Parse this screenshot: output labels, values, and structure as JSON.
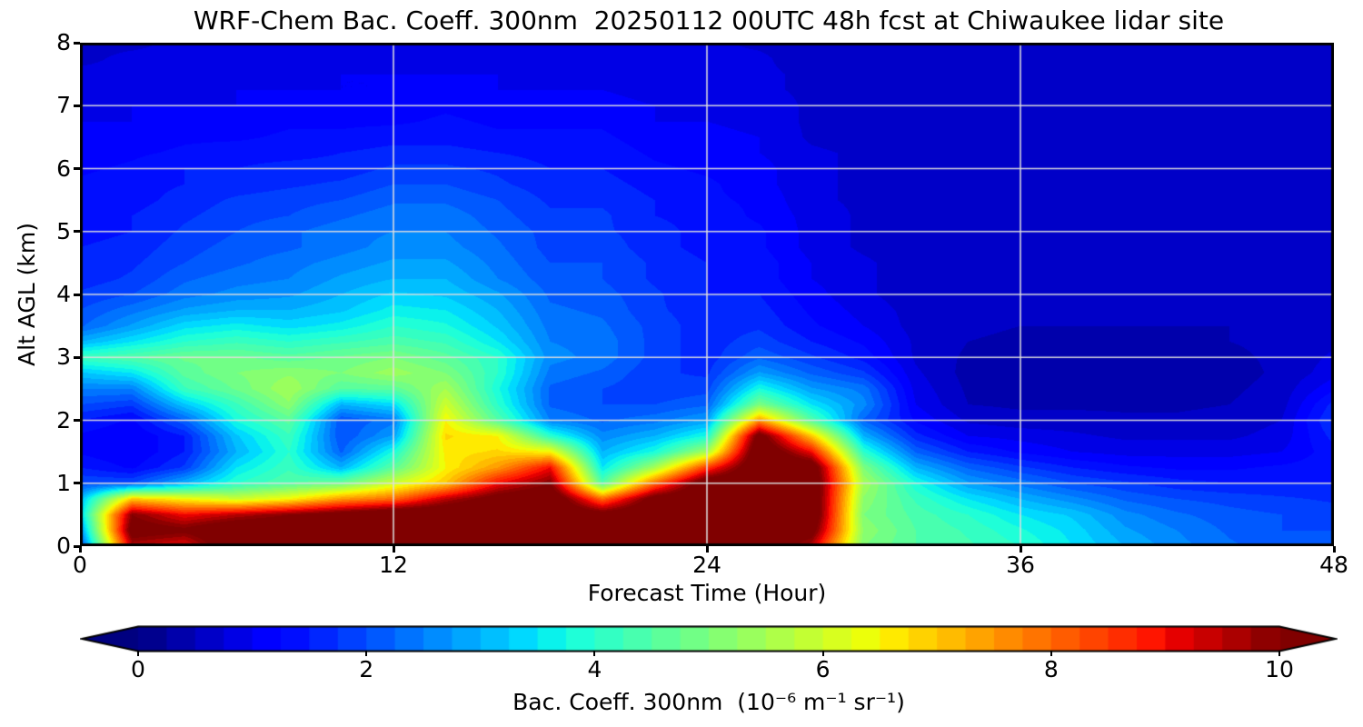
{
  "figure": {
    "background": "#ffffff"
  },
  "chart_data": {
    "type": "heatmap",
    "title": "WRF-Chem Bac. Coeff. 300nm  20250112 00UTC 48h fcst at Chiwaukee lidar site",
    "xlabel": "Forecast Time (Hour)",
    "ylabel": "Alt AGL (km)",
    "xlim": [
      0,
      48
    ],
    "ylim": [
      0,
      8
    ],
    "x_ticks": [
      0,
      12,
      24,
      36,
      48
    ],
    "y_ticks": [
      0,
      1,
      2,
      3,
      4,
      5,
      6,
      7,
      8
    ],
    "grid": true,
    "grid_color": "#dedede",
    "colormap": "jet",
    "value_range": [
      0,
      10
    ],
    "level_step": 0.25,
    "colorbar": {
      "ticks": [
        0,
        2,
        4,
        6,
        8,
        10
      ],
      "label": "Bac. Coeff. 300nm  (10⁻⁶ m⁻¹ sr⁻¹)",
      "extend": "both",
      "min_color": "#000080",
      "max_color": "#800000"
    },
    "units": "10⁻⁶ m⁻¹ sr⁻¹",
    "x_hours": [
      0,
      2,
      4,
      6,
      8,
      10,
      12,
      14,
      16,
      18,
      20,
      22,
      24,
      26,
      28,
      30,
      32,
      34,
      36,
      38,
      40,
      42,
      44,
      46,
      48
    ],
    "alt_km": [
      0,
      0.25,
      0.5,
      0.75,
      1,
      1.25,
      1.5,
      1.75,
      2,
      2.25,
      2.5,
      2.75,
      3,
      3.25,
      3.5,
      3.75,
      4,
      4.25,
      4.5,
      4.75,
      5,
      5.25,
      5.5,
      5.75,
      6,
      6.25,
      6.5,
      6.75,
      7,
      7.25,
      7.5,
      7.75,
      8
    ],
    "values_dims": [
      "hour",
      "alt"
    ],
    "values": [
      [
        1.8,
        2.5,
        3.2,
        3.0,
        2.0,
        1.5,
        1.2,
        1.2,
        1.5,
        2.0,
        2.5,
        3.2,
        4.2,
        3.0,
        2.2,
        2.0,
        1.8,
        1.6,
        1.5,
        1.5,
        1.4,
        1.4,
        1.3,
        1.3,
        1.2,
        1.1,
        1.0,
        1.0,
        0.9,
        0.8,
        0.8,
        0.7,
        0.7
      ],
      [
        9.5,
        10.5,
        10.0,
        7.0,
        2.0,
        1.2,
        1.0,
        1.0,
        1.2,
        1.8,
        2.5,
        3.5,
        4.5,
        3.5,
        2.8,
        2.4,
        2.0,
        1.8,
        1.7,
        1.6,
        1.5,
        1.5,
        1.4,
        1.4,
        1.3,
        1.2,
        1.1,
        1.0,
        1.0,
        0.9,
        0.8,
        0.8,
        0.7
      ],
      [
        9.0,
        10.2,
        9.0,
        6.5,
        3.0,
        1.8,
        1.5,
        1.5,
        2.2,
        3.2,
        4.2,
        4.6,
        4.8,
        4.0,
        3.4,
        2.8,
        2.4,
        2.2,
        2.0,
        1.9,
        1.8,
        1.7,
        1.6,
        1.5,
        1.5,
        1.3,
        1.2,
        1.1,
        1.0,
        0.9,
        0.9,
        0.8,
        0.8
      ],
      [
        11,
        11,
        9.5,
        6.0,
        4.0,
        3.5,
        3.0,
        3.2,
        3.8,
        4.2,
        4.8,
        5.0,
        4.8,
        4.2,
        3.6,
        3.0,
        2.6,
        2.4,
        2.2,
        2.1,
        2.0,
        1.9,
        1.8,
        1.6,
        1.5,
        1.4,
        1.2,
        1.1,
        1.0,
        1.0,
        0.9,
        0.8,
        0.8
      ],
      [
        11,
        11,
        10.0,
        6.5,
        4.5,
        4.2,
        4.0,
        4.2,
        4.6,
        5.2,
        5.5,
        5.2,
        4.6,
        4.0,
        3.4,
        3.0,
        2.7,
        2.5,
        2.4,
        2.2,
        2.2,
        2.0,
        1.9,
        1.7,
        1.6,
        1.4,
        1.3,
        1.2,
        1.1,
        1.0,
        0.9,
        0.9,
        0.8
      ],
      [
        11,
        11,
        10.5,
        7.5,
        4.8,
        3.0,
        2.2,
        2.0,
        2.0,
        3.0,
        4.5,
        5.0,
        4.8,
        4.2,
        3.6,
        3.2,
        3.0,
        2.8,
        2.6,
        2.4,
        2.4,
        2.2,
        2.0,
        1.8,
        1.6,
        1.5,
        1.3,
        1.2,
        1.1,
        1.0,
        1.0,
        0.9,
        0.8
      ],
      [
        11,
        11,
        11,
        8.0,
        6.0,
        4.6,
        3.8,
        2.8,
        2.4,
        3.4,
        4.6,
        5.4,
        5.0,
        4.4,
        4.0,
        3.6,
        3.3,
        3.0,
        2.8,
        2.6,
        2.5,
        2.4,
        2.2,
        2.0,
        1.8,
        1.6,
        1.4,
        1.2,
        1.1,
        1.0,
        1.0,
        0.9,
        0.9
      ],
      [
        11,
        11,
        11,
        9.5,
        7.0,
        6.5,
        6.6,
        6.8,
        6.5,
        6.0,
        5.5,
        5.0,
        4.6,
        4.2,
        3.8,
        3.5,
        3.2,
        3.0,
        2.8,
        2.6,
        2.5,
        2.4,
        2.2,
        2.0,
        1.8,
        1.6,
        1.4,
        1.3,
        1.2,
        1.1,
        1.0,
        0.9,
        0.9
      ],
      [
        11,
        11,
        11,
        10.5,
        9.0,
        7.5,
        6.8,
        6.5,
        4.5,
        4.0,
        3.8,
        4.0,
        4.0,
        3.5,
        3.2,
        3.0,
        2.8,
        2.5,
        2.4,
        2.3,
        2.2,
        2.1,
        2.0,
        1.8,
        1.7,
        1.5,
        1.3,
        1.2,
        1.1,
        1.0,
        1.0,
        0.9,
        0.9
      ],
      [
        11,
        11,
        11,
        11,
        10.0,
        9.0,
        6.5,
        4.0,
        2.5,
        2.2,
        2.2,
        2.4,
        2.6,
        2.5,
        2.4,
        2.3,
        2.2,
        2.1,
        2.0,
        1.9,
        1.9,
        1.8,
        1.7,
        1.6,
        1.5,
        1.4,
        1.3,
        1.2,
        1.1,
        1.0,
        0.9,
        0.9,
        0.8
      ],
      [
        11,
        11,
        10.5,
        8.0,
        4.5,
        3.5,
        3.0,
        2.6,
        2.2,
        2.0,
        2.0,
        2.2,
        2.4,
        2.4,
        2.3,
        2.2,
        2.1,
        2.0,
        2.0,
        1.9,
        1.8,
        1.8,
        1.7,
        1.6,
        1.5,
        1.4,
        1.3,
        1.2,
        1.1,
        1.0,
        0.9,
        0.9,
        0.8
      ],
      [
        11,
        11,
        11,
        10.5,
        8.0,
        5.5,
        3.8,
        3.0,
        2.4,
        2.0,
        1.8,
        1.8,
        1.9,
        1.9,
        1.9,
        1.8,
        1.8,
        1.7,
        1.7,
        1.6,
        1.6,
        1.5,
        1.5,
        1.4,
        1.3,
        1.2,
        1.1,
        1.0,
        1.0,
        0.9,
        0.9,
        0.8,
        0.8
      ],
      [
        11,
        11,
        11,
        11,
        10.8,
        8.5,
        5.5,
        3.8,
        2.8,
        2.2,
        1.9,
        1.7,
        1.6,
        1.6,
        1.6,
        1.6,
        1.5,
        1.5,
        1.5,
        1.4,
        1.4,
        1.4,
        1.3,
        1.3,
        1.2,
        1.1,
        1.1,
        1.0,
        0.9,
        0.9,
        0.8,
        0.8,
        0.8
      ],
      [
        11,
        11,
        11,
        11,
        11,
        11,
        11,
        10.5,
        7.5,
        5.0,
        3.8,
        2.8,
        2.2,
        1.9,
        1.7,
        1.6,
        1.5,
        1.4,
        1.4,
        1.3,
        1.3,
        1.2,
        1.2,
        1.1,
        1.1,
        1.0,
        1.0,
        0.9,
        0.9,
        0.8,
        0.8,
        0.8,
        0.7
      ],
      [
        9.5,
        10.5,
        11,
        11,
        11,
        10.8,
        9.0,
        7.0,
        4.5,
        3.5,
        2.8,
        2.2,
        1.8,
        1.5,
        1.3,
        1.2,
        1.1,
        1.0,
        1.0,
        0.9,
        0.9,
        0.9,
        0.8,
        0.8,
        0.8,
        0.8,
        0.7,
        0.7,
        0.7,
        0.7,
        0.7,
        0.6,
        0.6
      ],
      [
        5.0,
        5.2,
        5.0,
        5.2,
        5.5,
        5.0,
        4.0,
        3.0,
        2.2,
        2.6,
        2.4,
        1.8,
        1.4,
        1.2,
        1.0,
        0.9,
        0.8,
        0.8,
        0.8,
        0.7,
        0.7,
        0.7,
        0.7,
        0.7,
        0.7,
        0.7,
        0.6,
        0.6,
        0.6,
        0.6,
        0.6,
        0.6,
        0.6
      ],
      [
        4.5,
        4.5,
        4.4,
        4.2,
        3.8,
        3.0,
        2.2,
        1.6,
        1.2,
        1.0,
        0.9,
        0.8,
        0.7,
        0.7,
        0.65,
        0.65,
        0.6,
        0.6,
        0.6,
        0.6,
        0.6,
        0.6,
        0.6,
        0.6,
        0.6,
        0.6,
        0.6,
        0.6,
        0.6,
        0.6,
        0.6,
        0.6,
        0.6
      ],
      [
        4.3,
        4.2,
        4.0,
        3.5,
        2.8,
        2.2,
        1.5,
        1.0,
        0.7,
        0.5,
        0.45,
        0.4,
        0.45,
        0.5,
        0.55,
        0.6,
        0.6,
        0.65,
        0.65,
        0.65,
        0.65,
        0.65,
        0.65,
        0.65,
        0.65,
        0.65,
        0.6,
        0.6,
        0.6,
        0.6,
        0.6,
        0.6,
        0.6
      ],
      [
        4.0,
        3.8,
        3.5,
        3.0,
        2.4,
        1.8,
        1.2,
        0.9,
        0.6,
        0.45,
        0.4,
        0.4,
        0.4,
        0.45,
        0.5,
        0.55,
        0.6,
        0.6,
        0.65,
        0.65,
        0.65,
        0.65,
        0.65,
        0.65,
        0.65,
        0.65,
        0.65,
        0.6,
        0.6,
        0.6,
        0.6,
        0.6,
        0.6
      ],
      [
        3.5,
        3.4,
        3.2,
        2.6,
        2.0,
        1.5,
        1.0,
        0.8,
        0.6,
        0.45,
        0.4,
        0.4,
        0.4,
        0.45,
        0.5,
        0.55,
        0.6,
        0.6,
        0.6,
        0.65,
        0.65,
        0.65,
        0.7,
        0.7,
        0.7,
        0.65,
        0.65,
        0.65,
        0.6,
        0.6,
        0.6,
        0.6,
        0.6
      ],
      [
        3.0,
        2.8,
        2.6,
        2.2,
        1.8,
        1.3,
        0.9,
        0.7,
        0.55,
        0.45,
        0.4,
        0.4,
        0.4,
        0.45,
        0.5,
        0.55,
        0.6,
        0.6,
        0.6,
        0.65,
        0.65,
        0.65,
        0.7,
        0.7,
        0.7,
        0.7,
        0.65,
        0.65,
        0.6,
        0.6,
        0.6,
        0.6,
        0.55
      ],
      [
        2.6,
        2.5,
        2.3,
        2.0,
        1.6,
        1.2,
        0.9,
        0.7,
        0.55,
        0.45,
        0.4,
        0.4,
        0.4,
        0.45,
        0.5,
        0.5,
        0.55,
        0.6,
        0.6,
        0.6,
        0.65,
        0.65,
        0.65,
        0.65,
        0.65,
        0.65,
        0.65,
        0.6,
        0.6,
        0.6,
        0.6,
        0.55,
        0.55
      ],
      [
        2.3,
        2.2,
        2.1,
        1.9,
        1.5,
        1.2,
        0.9,
        0.7,
        0.6,
        0.5,
        0.45,
        0.4,
        0.45,
        0.5,
        0.5,
        0.55,
        0.55,
        0.6,
        0.6,
        0.6,
        0.6,
        0.65,
        0.65,
        0.65,
        0.65,
        0.6,
        0.6,
        0.6,
        0.6,
        0.6,
        0.55,
        0.55,
        0.55
      ],
      [
        2.1,
        2.0,
        2.0,
        1.8,
        1.5,
        1.3,
        1.0,
        0.85,
        0.75,
        0.65,
        0.6,
        0.55,
        0.55,
        0.55,
        0.55,
        0.55,
        0.55,
        0.6,
        0.6,
        0.6,
        0.6,
        0.6,
        0.6,
        0.6,
        0.6,
        0.6,
        0.6,
        0.6,
        0.55,
        0.55,
        0.55,
        0.55,
        0.55
      ],
      [
        2.0,
        2.0,
        1.9,
        1.7,
        1.5,
        1.4,
        1.4,
        1.6,
        1.8,
        1.6,
        1.2,
        0.9,
        0.8,
        0.7,
        0.65,
        0.6,
        0.6,
        0.6,
        0.6,
        0.6,
        0.6,
        0.6,
        0.6,
        0.6,
        0.6,
        0.6,
        0.6,
        0.55,
        0.55,
        0.55,
        0.55,
        0.55,
        0.55
      ]
    ]
  }
}
